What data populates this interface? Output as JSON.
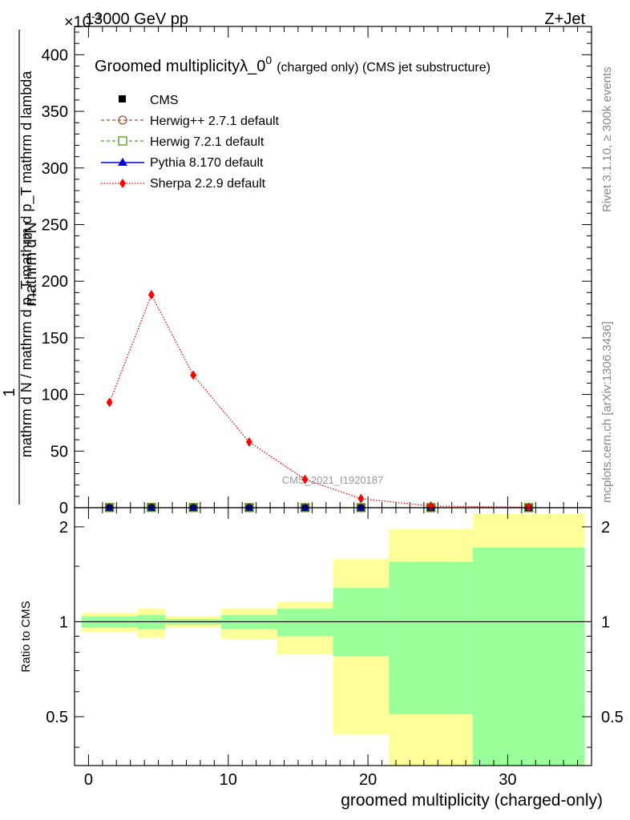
{
  "header": {
    "left": "13000 GeV pp",
    "right": "Z+Jet",
    "exponent_label": "×10",
    "exponent_power": "-3"
  },
  "side_texts": {
    "rivet": "Rivet 3.1.10, ≥ 300k events",
    "mcplots": "mcplots.cern.ch [arXiv:1306.3436]"
  },
  "chart_data": [
    {
      "type": "line",
      "title_main": "Groomed multiplicityλ_0",
      "title_sup": "0",
      "title_rest": "(charged only) (CMS jet substructure)",
      "watermark": "CMS_2021_I1920187",
      "ylabel_numerator": "mathrm d²N",
      "ylabel_denominator": "mathrm d N / mathrm d p_T mathrm d p_T mathrm d lambda",
      "ylabel_one": "1",
      "xlim": [
        -1,
        36
      ],
      "ylim": [
        0,
        425
      ],
      "yticks": [
        0,
        50,
        100,
        150,
        200,
        250,
        300,
        350,
        400
      ],
      "legend_position": "top-left",
      "series": [
        {
          "name": "CMS",
          "style": "data",
          "color": "#000000",
          "x": [
            1.5,
            4.5,
            7.5,
            11.5,
            15.5,
            19.5,
            24.5,
            31.5
          ],
          "y": [
            0.09,
            0.19,
            0.12,
            0.06,
            0.025,
            0.008,
            0.002,
            0.0005
          ]
        },
        {
          "name": "Herwig++ 2.7.1 default",
          "style": "open-circle-dashed",
          "color": "#a0522d",
          "x": [
            1.5,
            4.5,
            7.5,
            11.5,
            15.5,
            19.5,
            24.5,
            31.5
          ],
          "y": [
            0.09,
            0.19,
            0.12,
            0.06,
            0.025,
            0.008,
            0.002,
            0.0005
          ]
        },
        {
          "name": "Herwig 7.2.1 default",
          "style": "open-square-dashed",
          "color": "#4b9c1a",
          "x": [
            1.5,
            4.5,
            7.5,
            11.5,
            15.5,
            19.5,
            24.5,
            31.5
          ],
          "y": [
            0.09,
            0.19,
            0.12,
            0.06,
            0.025,
            0.008,
            0.002,
            0.0005
          ]
        },
        {
          "name": "Pythia 8.170 default",
          "style": "triangle-solid",
          "color": "#0000cc",
          "x": [
            1.5,
            4.5,
            7.5,
            11.5,
            15.5,
            19.5,
            24.5,
            31.5
          ],
          "y": [
            0.09,
            0.19,
            0.12,
            0.06,
            0.025,
            0.008,
            0.002,
            0.0005
          ]
        },
        {
          "name": "Sherpa 2.2.9 default",
          "style": "diamond-dotted",
          "color": "#ff0000",
          "x": [
            1.5,
            4.5,
            7.5,
            11.5,
            15.5,
            19.5,
            24.5,
            31.5
          ],
          "y": [
            93,
            188,
            117,
            58,
            25,
            8,
            1.5,
            0.4
          ]
        }
      ]
    },
    {
      "type": "area",
      "ylabel": "Ratio to CMS",
      "xlabel": "groomed multiplicity (charged-only)",
      "xlim": [
        -1,
        36
      ],
      "ylim": [
        0.35,
        2.3
      ],
      "yscale": "log",
      "xticks": [
        0,
        10,
        20,
        30
      ],
      "yticks": [
        "0.5",
        "1",
        "2"
      ],
      "reference_line": 1,
      "bins": [
        {
          "lo": -0.5,
          "hi": 3.5,
          "stat_lo": 0.96,
          "stat_hi": 1.04,
          "tot_lo": 0.93,
          "tot_hi": 1.07
        },
        {
          "lo": 3.5,
          "hi": 5.5,
          "stat_lo": 0.95,
          "stat_hi": 1.05,
          "tot_lo": 0.89,
          "tot_hi": 1.1
        },
        {
          "lo": 5.5,
          "hi": 9.5,
          "stat_lo": 0.98,
          "stat_hi": 1.02,
          "tot_lo": 0.96,
          "tot_hi": 1.04
        },
        {
          "lo": 9.5,
          "hi": 13.5,
          "stat_lo": 0.95,
          "stat_hi": 1.05,
          "tot_lo": 0.88,
          "tot_hi": 1.1
        },
        {
          "lo": 13.5,
          "hi": 17.5,
          "stat_lo": 0.9,
          "stat_hi": 1.1,
          "tot_lo": 0.79,
          "tot_hi": 1.16
        },
        {
          "lo": 17.5,
          "hi": 21.5,
          "stat_lo": 0.78,
          "stat_hi": 1.28,
          "tot_lo": 0.44,
          "tot_hi": 1.58
        },
        {
          "lo": 21.5,
          "hi": 27.5,
          "stat_lo": 0.51,
          "stat_hi": 1.55,
          "tot_lo": 0.3,
          "tot_hi": 1.97
        },
        {
          "lo": 27.5,
          "hi": 35.5,
          "stat_lo": 0.3,
          "stat_hi": 1.72,
          "tot_lo": 0.3,
          "tot_hi": 2.2
        }
      ]
    }
  ],
  "colors": {
    "stat_band": "#99ff99",
    "tot_band": "#ffff99",
    "reference_line": "#000000"
  }
}
